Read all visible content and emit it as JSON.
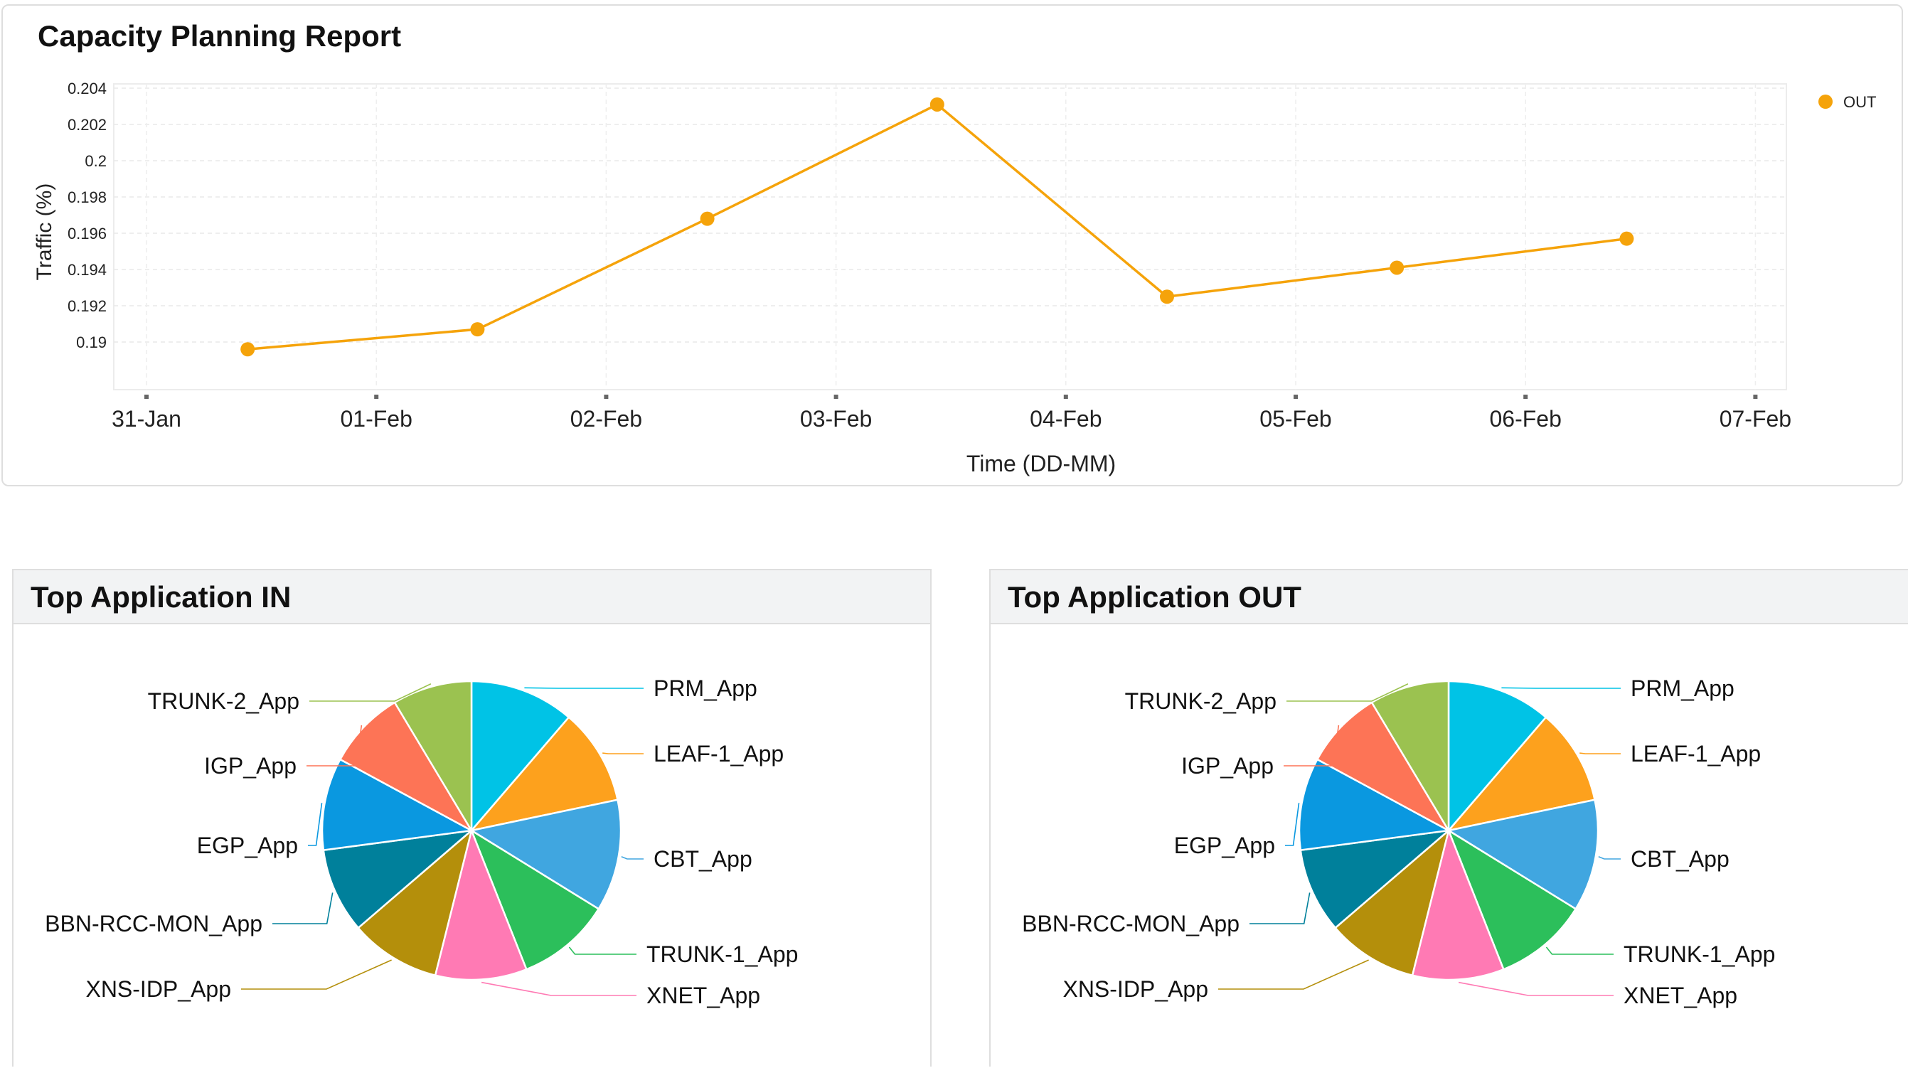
{
  "capacity": {
    "title": "Capacity Planning Report"
  },
  "top_in": {
    "title": "Top Application IN"
  },
  "top_out": {
    "title": "Top Application OUT"
  },
  "chart_data": [
    {
      "type": "line",
      "title": "Capacity Planning Report",
      "xlabel": "Time (DD-MM)",
      "ylabel": "Traffic (%)",
      "x_ticks": [
        "31-Jan",
        "01-Feb",
        "02-Feb",
        "03-Feb",
        "04-Feb",
        "05-Feb",
        "06-Feb",
        "07-Feb"
      ],
      "y_ticks": [
        "0.19",
        "0.192",
        "0.194",
        "0.196",
        "0.198",
        "0.2",
        "0.202",
        "0.204"
      ],
      "ylim": [
        0.1877,
        0.2045
      ],
      "grid": true,
      "legend": "top-right",
      "series": [
        {
          "name": "OUT",
          "color": "#f5a30a",
          "x": [
            "31-Jan 12:00",
            "01-Feb 12:00",
            "02-Feb 12:00",
            "03-Feb 12:00",
            "04-Feb 12:00",
            "05-Feb 12:00",
            "06-Feb 12:00"
          ],
          "x_days": [
            0.44,
            1.44,
            2.44,
            3.44,
            4.44,
            5.44,
            6.44
          ],
          "values": [
            0.1896,
            0.1907,
            0.1968,
            0.2031,
            0.1925,
            0.1941,
            0.1957
          ]
        }
      ]
    },
    {
      "type": "pie",
      "title": "Top Application IN",
      "labels": [
        "PRM_App",
        "LEAF-1_App",
        "CBT_App",
        "TRUNK-1_App",
        "XNET_App",
        "XNS-IDP_App",
        "BBN-RCC-MON_App",
        "EGP_App",
        "IGP_App",
        "TRUNK-2_App"
      ],
      "values": [
        11.3,
        10.4,
        12.1,
        10.2,
        9.9,
        9.8,
        9.2,
        10.0,
        8.5,
        8.6
      ],
      "colors": [
        "#00c3e6",
        "#fda11d",
        "#40a6e0",
        "#2cbf5b",
        "#ff7ab4",
        "#b48f0b",
        "#00809b",
        "#0a98e0",
        "#fd7456",
        "#9bc250"
      ]
    },
    {
      "type": "pie",
      "title": "Top Application OUT",
      "labels": [
        "PRM_App",
        "LEAF-1_App",
        "CBT_App",
        "TRUNK-1_App",
        "XNET_App",
        "XNS-IDP_App",
        "BBN-RCC-MON_App",
        "EGP_App",
        "IGP_App",
        "TRUNK-2_App"
      ],
      "values": [
        11.3,
        10.4,
        12.1,
        10.2,
        9.9,
        9.8,
        9.2,
        10.0,
        8.5,
        8.6
      ],
      "colors": [
        "#00c3e6",
        "#fda11d",
        "#40a6e0",
        "#2cbf5b",
        "#ff7ab4",
        "#b48f0b",
        "#00809b",
        "#0a98e0",
        "#fd7456",
        "#9bc250"
      ]
    }
  ]
}
